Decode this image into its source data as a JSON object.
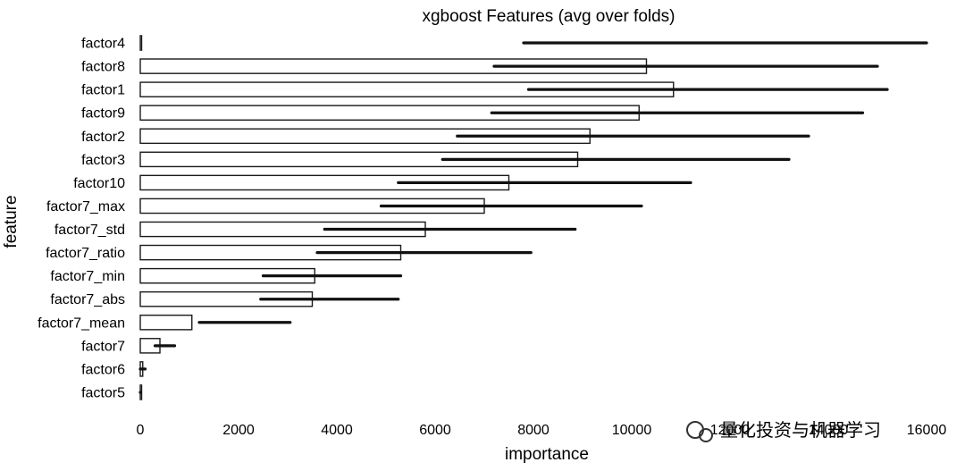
{
  "chart_data": {
    "type": "bar",
    "orientation": "horizontal",
    "title": "xgboost Features (avg over folds)",
    "xlabel": "importance",
    "ylabel": "feature",
    "xlim": [
      0,
      16000
    ],
    "xticks": [
      0,
      2000,
      4000,
      6000,
      8000,
      10000,
      12000,
      14000,
      16000
    ],
    "grid": false,
    "categories": [
      "factor4",
      "factor8",
      "factor1",
      "factor9",
      "factor2",
      "factor3",
      "factor10",
      "factor7_max",
      "factor7_std",
      "factor7_ratio",
      "factor7_min",
      "factor7_abs",
      "factor7_mean",
      "factor7",
      "factor6",
      "factor5"
    ],
    "values": [
      0,
      10300,
      10850,
      10150,
      9150,
      8900,
      7500,
      7000,
      5800,
      5300,
      3550,
      3500,
      1050,
      400,
      50,
      0
    ],
    "error_bars": [
      [
        7800,
        16000
      ],
      [
        7200,
        15000
      ],
      [
        7900,
        15200
      ],
      [
        7150,
        14700
      ],
      [
        6450,
        13600
      ],
      [
        6150,
        13200
      ],
      [
        5250,
        11200
      ],
      [
        4900,
        10200
      ],
      [
        3750,
        8850
      ],
      [
        3600,
        7950
      ],
      [
        2500,
        5300
      ],
      [
        2450,
        5250
      ],
      [
        1200,
        3050
      ],
      [
        300,
        700
      ],
      [
        0,
        100
      ],
      [
        0,
        0
      ]
    ],
    "bar_color": "#ffffff",
    "bar_edge_color": "#1a1a1a",
    "error_color": "#111111"
  },
  "watermark": {
    "text": "量化投资与机器学习"
  }
}
